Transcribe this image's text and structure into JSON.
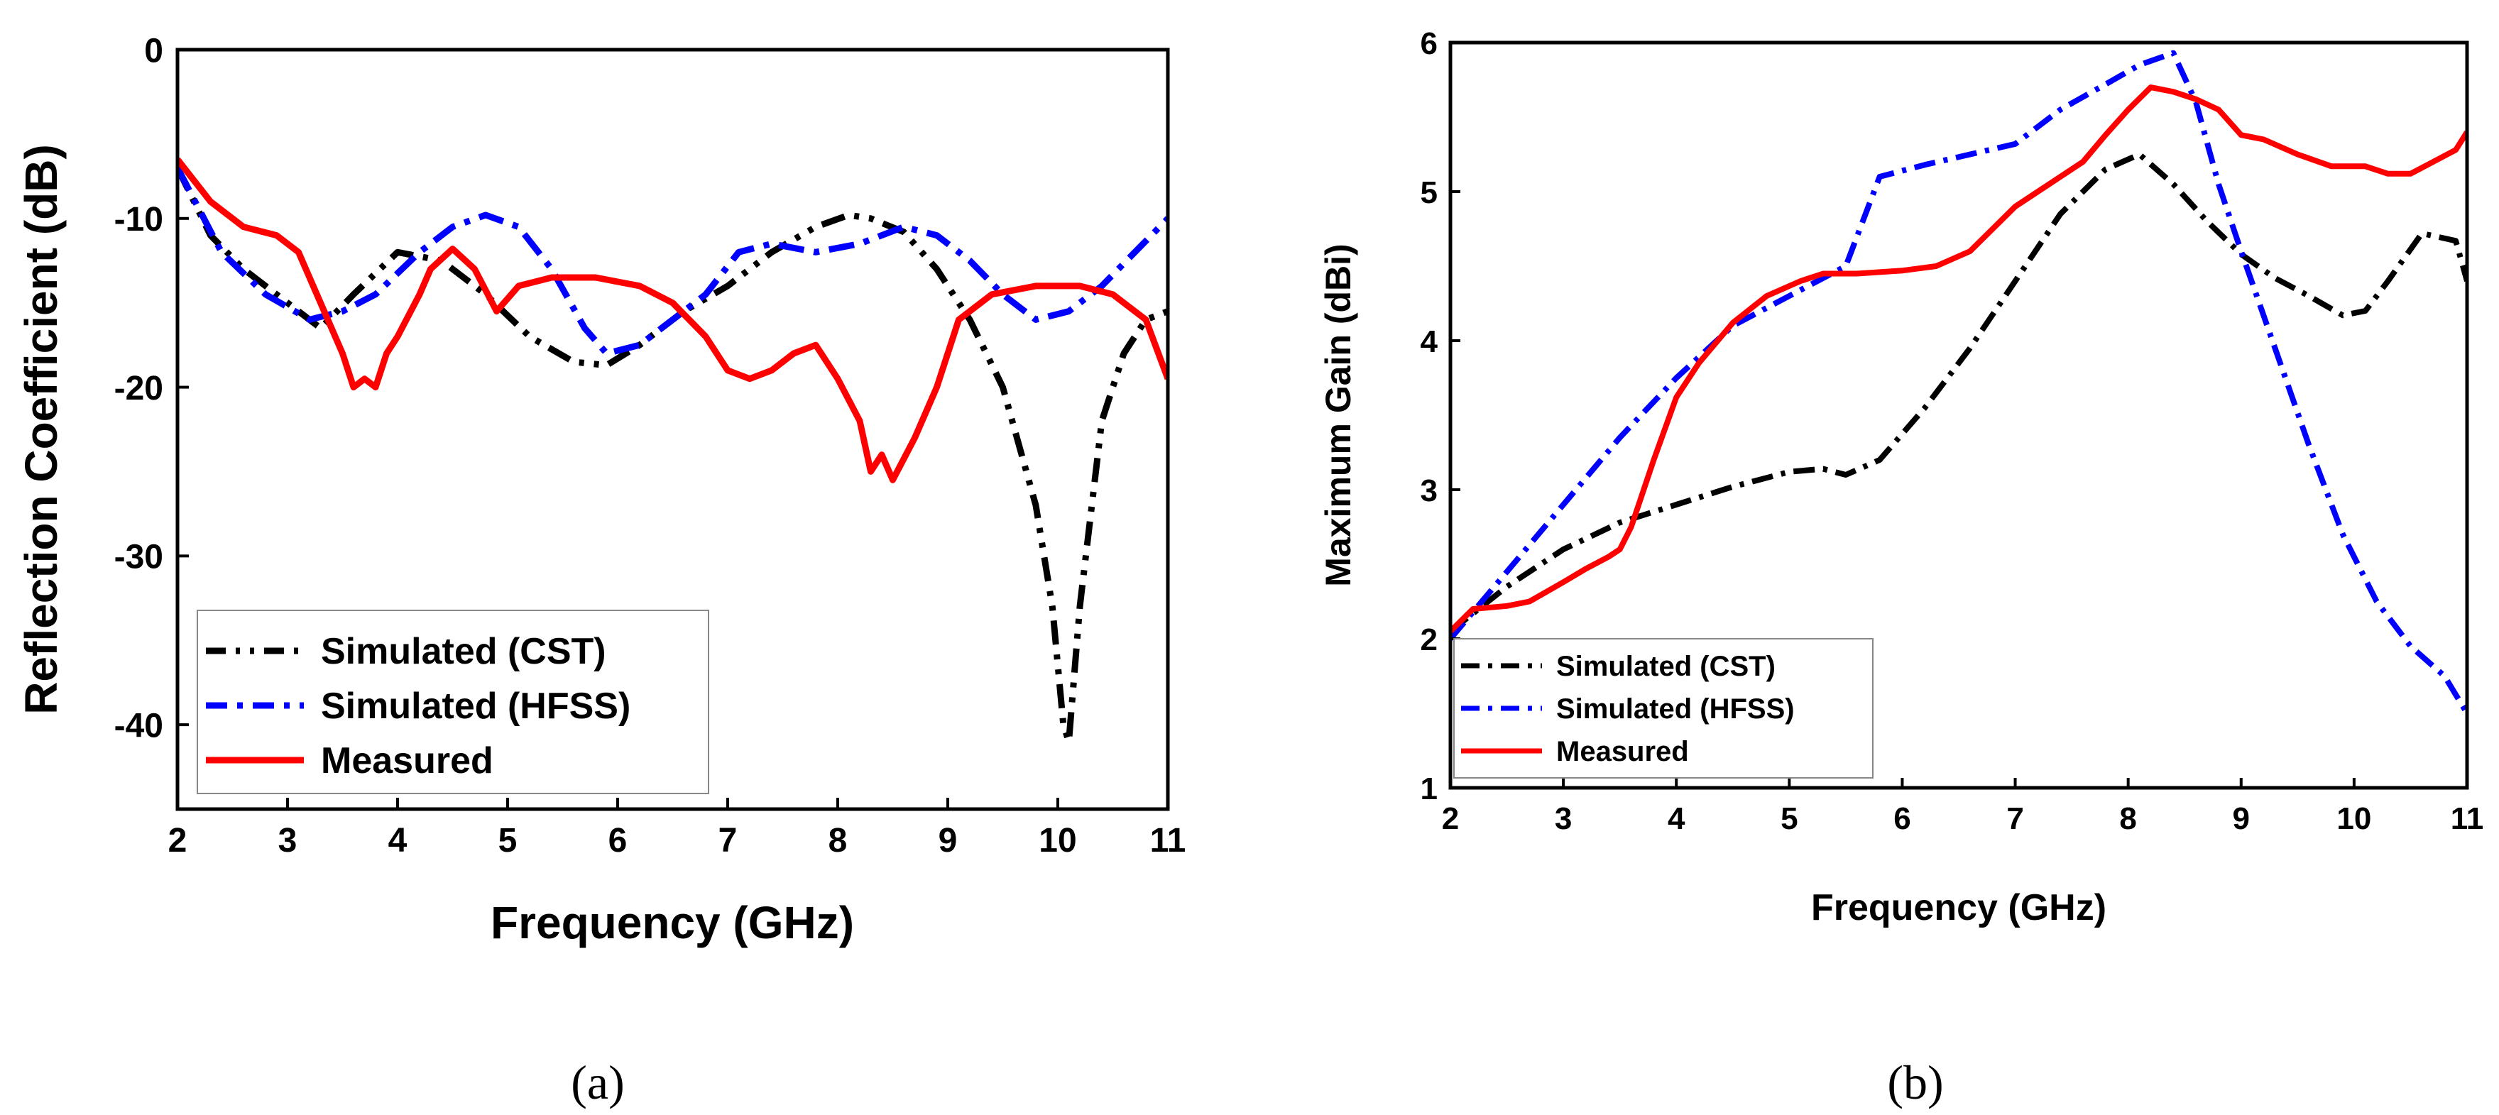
{
  "colors": {
    "cst": "#000000",
    "hfss": "#0000ff",
    "measured": "#ff0000"
  },
  "panel_labels": [
    "(a)",
    "(b)"
  ],
  "chart_data": [
    {
      "type": "line",
      "panel": "a",
      "title": "",
      "xlabel": "Frequency (GHz)",
      "ylabel": "Reflection Coefficient (dB)",
      "xlim": [
        2,
        11
      ],
      "ylim": [
        -45,
        0
      ],
      "xticks": [
        "2",
        "3",
        "4",
        "5",
        "6",
        "7",
        "8",
        "9",
        "10",
        "11"
      ],
      "yticks": [
        "0",
        "-10",
        "-20",
        "-30",
        "-40"
      ],
      "ytick_values": [
        0,
        -10,
        -20,
        -30,
        -40
      ],
      "legend_position": "bottom-left",
      "series": [
        {
          "name": "Simulated (CST)",
          "style": "dash-dot-dot",
          "x": [
            2,
            2.3,
            2.6,
            3.0,
            3.3,
            3.6,
            4.0,
            4.4,
            4.8,
            5.2,
            5.6,
            5.9,
            6.2,
            6.6,
            7.0,
            7.4,
            7.8,
            8.1,
            8.3,
            8.6,
            8.9,
            9.2,
            9.5,
            9.8,
            9.95,
            10.05,
            10.1,
            10.2,
            10.4,
            10.6,
            10.8,
            11.0
          ],
          "y": [
            -7,
            -11,
            -13,
            -15,
            -16.5,
            -14.5,
            -12,
            -12.5,
            -14.5,
            -17,
            -18.5,
            -18.7,
            -17.5,
            -15.5,
            -14,
            -12,
            -10.5,
            -9.8,
            -10,
            -10.8,
            -13,
            -16,
            -20,
            -27,
            -33,
            -40,
            -41,
            -33,
            -22,
            -18,
            -16,
            -15.5
          ]
        },
        {
          "name": "Simulated (HFSS)",
          "style": "dash-dot",
          "x": [
            2,
            2.4,
            2.8,
            3.2,
            3.5,
            3.8,
            4.2,
            4.5,
            4.8,
            5.1,
            5.4,
            5.7,
            5.9,
            6.2,
            6.5,
            6.8,
            7.1,
            7.4,
            7.8,
            8.2,
            8.6,
            8.9,
            9.2,
            9.5,
            9.8,
            10.1,
            10.4,
            10.7,
            11.0
          ],
          "y": [
            -7,
            -12,
            -14.5,
            -16,
            -15.5,
            -14.5,
            -12,
            -10.5,
            -9.8,
            -10.5,
            -13,
            -16.5,
            -18,
            -17.5,
            -16,
            -14.5,
            -12,
            -11.5,
            -12,
            -11.5,
            -10.5,
            -11,
            -12.5,
            -14.5,
            -16,
            -15.5,
            -14,
            -12,
            -10
          ]
        },
        {
          "name": "Measured",
          "style": "solid",
          "x": [
            2,
            2.3,
            2.6,
            2.9,
            3.1,
            3.3,
            3.5,
            3.6,
            3.7,
            3.8,
            3.9,
            4.0,
            4.2,
            4.3,
            4.5,
            4.7,
            4.9,
            5.1,
            5.4,
            5.8,
            6.2,
            6.5,
            6.8,
            7.0,
            7.2,
            7.4,
            7.6,
            7.8,
            8.0,
            8.2,
            8.3,
            8.4,
            8.5,
            8.7,
            8.9,
            9.1,
            9.4,
            9.8,
            10.2,
            10.5,
            10.8,
            11.0
          ],
          "y": [
            -6.5,
            -9,
            -10.5,
            -11,
            -12,
            -15,
            -18,
            -20,
            -19.5,
            -20,
            -18,
            -17,
            -14.5,
            -13,
            -11.8,
            -13,
            -15.5,
            -14,
            -13.5,
            -13.5,
            -14,
            -15,
            -17,
            -19,
            -19.5,
            -19,
            -18,
            -17.5,
            -19.5,
            -22,
            -25,
            -24,
            -25.5,
            -23,
            -20,
            -16,
            -14.5,
            -14,
            -14,
            -14.5,
            -16,
            -19.5
          ]
        }
      ]
    },
    {
      "type": "line",
      "panel": "b",
      "title": "",
      "xlabel": "Frequency (GHz)",
      "ylabel": "Maximum Gain (dBi)",
      "xlim": [
        2,
        11
      ],
      "ylim": [
        1,
        6
      ],
      "xticks": [
        "2",
        "3",
        "4",
        "5",
        "6",
        "7",
        "8",
        "9",
        "10",
        "11"
      ],
      "yticks": [
        "1",
        "2",
        "3",
        "4",
        "5",
        "6"
      ],
      "ytick_values": [
        1,
        2,
        3,
        4,
        5,
        6
      ],
      "legend_position": "bottom-left",
      "series": [
        {
          "name": "Simulated  (CST)",
          "style": "dash-dot",
          "x": [
            2,
            2.5,
            3,
            3.5,
            4,
            4.5,
            5,
            5.3,
            5.5,
            5.8,
            6.2,
            6.6,
            7,
            7.4,
            7.8,
            8.1,
            8.4,
            8.7,
            9,
            9.3,
            9.6,
            9.9,
            10.1,
            10.3,
            10.6,
            10.9,
            11
          ],
          "y": [
            2.05,
            2.35,
            2.6,
            2.78,
            2.9,
            3.02,
            3.12,
            3.14,
            3.1,
            3.2,
            3.55,
            3.95,
            4.4,
            4.85,
            5.15,
            5.25,
            5.05,
            4.8,
            4.58,
            4.42,
            4.3,
            4.17,
            4.2,
            4.4,
            4.72,
            4.67,
            4.4
          ]
        },
        {
          "name": "Simulated  (HFSS)",
          "style": "dash-dot",
          "x": [
            2,
            2.5,
            3,
            3.5,
            4,
            4.5,
            5,
            5.5,
            5.8,
            6.2,
            6.6,
            7.0,
            7.4,
            7.8,
            8.1,
            8.4,
            8.6,
            8.8,
            9.0,
            9.3,
            9.6,
            9.9,
            10.2,
            10.5,
            10.8,
            11
          ],
          "y": [
            2.0,
            2.45,
            2.9,
            3.35,
            3.75,
            4.1,
            4.3,
            4.5,
            5.1,
            5.18,
            5.25,
            5.32,
            5.55,
            5.72,
            5.85,
            5.93,
            5.6,
            5.05,
            4.6,
            3.95,
            3.3,
            2.7,
            2.25,
            1.95,
            1.75,
            1.5
          ]
        },
        {
          "name": "Measured",
          "style": "solid",
          "x": [
            2,
            2.2,
            2.5,
            2.7,
            3.0,
            3.2,
            3.4,
            3.5,
            3.6,
            3.8,
            4.0,
            4.2,
            4.5,
            4.8,
            5.1,
            5.3,
            5.6,
            6.0,
            6.3,
            6.6,
            7.0,
            7.3,
            7.6,
            7.8,
            8.0,
            8.2,
            8.4,
            8.6,
            8.8,
            9.0,
            9.2,
            9.5,
            9.8,
            10.1,
            10.3,
            10.5,
            10.7,
            10.9,
            11
          ],
          "y": [
            2.05,
            2.2,
            2.22,
            2.25,
            2.38,
            2.47,
            2.55,
            2.6,
            2.75,
            3.2,
            3.62,
            3.85,
            4.12,
            4.3,
            4.4,
            4.45,
            4.45,
            4.47,
            4.5,
            4.6,
            4.9,
            5.05,
            5.2,
            5.38,
            5.55,
            5.7,
            5.67,
            5.62,
            5.55,
            5.38,
            5.35,
            5.25,
            5.17,
            5.17,
            5.12,
            5.12,
            5.2,
            5.28,
            5.4
          ]
        }
      ]
    }
  ]
}
